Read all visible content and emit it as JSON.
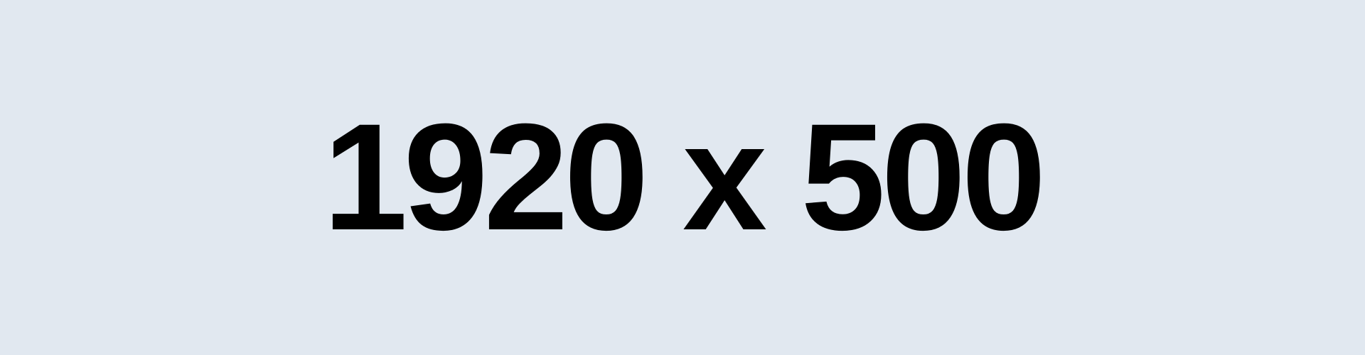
{
  "label": "1920 x 500",
  "colors": {
    "background": "#e1e8f0",
    "text": "#000000"
  }
}
